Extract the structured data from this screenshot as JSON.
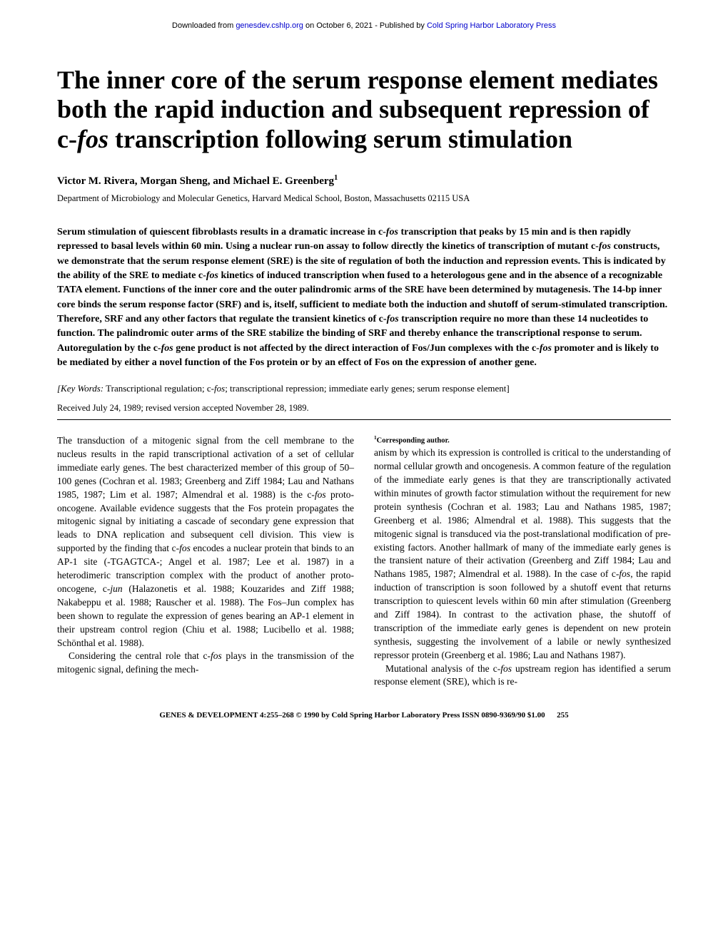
{
  "header": {
    "prefix": "Downloaded from ",
    "link1": "genesdev.cshlp.org",
    "middle": " on October 6, 2021 - Published by ",
    "link2": "Cold Spring Harbor Laboratory Press"
  },
  "title": {
    "line1": "The inner core of the serum response element mediates both the rapid induction and subsequent repression of c-",
    "italic1": "fos",
    "line2": " transcription following serum stimulation"
  },
  "authors": "Victor M. Rivera, Morgan Sheng, and Michael E. Greenberg",
  "authors_sup": "1",
  "affiliation": "Department of Microbiology and Molecular Genetics, Harvard Medical School, Boston, Massachusetts 02115 USA",
  "abstract": {
    "p1a": "Serum stimulation of quiescent fibroblasts results in a dramatic increase in c-",
    "i1": "fos",
    "p1b": " transcription that peaks by 15 min and is then rapidly repressed to basal levels within 60 min. Using a nuclear run-on assay to follow directly the kinetics of transcription of mutant c-",
    "i2": "fos",
    "p1c": " constructs, we demonstrate that the serum response element (SRE) is the site of regulation of both the induction and repression events. This is indicated by the ability of the SRE to mediate c-",
    "i3": "fos",
    "p1d": " kinetics of induced transcription when fused to a heterologous gene and in the absence of a recognizable TATA element. Functions of the inner core and the outer palindromic arms of the SRE have been determined by mutagenesis. The 14-bp inner core binds the serum response factor (SRF) and is, itself, sufficient to mediate both the induction and shutoff of serum-stimulated transcription. Therefore, SRF and any other factors that regulate the transient kinetics of c-",
    "i4": "fos",
    "p1e": " transcription require no more than these 14 nucleotides to function. The palindromic outer arms of the SRE stabilize the binding of SRF and thereby enhance the transcriptional response to serum. Autoregulation by the c-",
    "i5": "fos",
    "p1f": " gene product is not affected by the direct interaction of Fos/Jun complexes with the c-",
    "i6": "fos",
    "p1g": " promoter and is likely to be mediated by either a novel function of the Fos protein or by an effect of Fos on the expression of another gene."
  },
  "keywords": {
    "label": "[Key Words:",
    "text1": " Transcriptional regulation; c-",
    "i1": "fos",
    "text2": "; transcriptional repression; immediate early genes; serum response element]"
  },
  "received": "Received July 24, 1989; revised version accepted November 28, 1989.",
  "body": {
    "p1a": "The transduction of a mitogenic signal from the cell membrane to the nucleus results in the rapid transcriptional activation of a set of cellular immediate early genes. The best characterized member of this group of 50–100 genes (Cochran et al. 1983; Greenberg and Ziff 1984; Lau and Nathans 1985, 1987; Lim et al. 1987; Almendral et al. 1988) is the c-",
    "i1": "fos",
    "p1b": " proto-oncogene. Available evidence suggests that the Fos protein propagates the mitogenic signal by initiating a cascade of secondary gene expression that leads to DNA replication and subsequent cell division. This view is supported by the finding that c-",
    "i2": "fos",
    "p1c": " encodes a nuclear protein that binds to an AP-1 site (-TGAGTCA-; Angel et al. 1987; Lee et al. 1987) in a heterodimeric transcription complex with the product of another proto-oncogene, c-",
    "i3": "jun",
    "p1d": " (Halazonetis et al. 1988; Kouzarides and Ziff 1988; Nakabeppu et al. 1988; Rauscher et al. 1988). The Fos–Jun complex has been shown to regulate the expression of genes bearing an AP-1 element in their upstream control region (Chiu et al. 1988; Lucibello et al. 1988; Schönthal et al. 1988).",
    "p2a": "Considering the central role that c-",
    "i4": "fos",
    "p2b": " plays in the transmission of the mitogenic signal, defining the mech-",
    "p3a": "anism by which its expression is controlled is critical to the understanding of normal cellular growth and oncogenesis. A common feature of the regulation of the immediate early genes is that they are transcriptionally activated within minutes of growth factor stimulation without the requirement for new protein synthesis (Cochran et al. 1983; Lau and Nathans 1985, 1987; Greenberg et al. 1986; Almendral et al. 1988). This suggests that the mitogenic signal is transduced via the post-translational modification of pre-existing factors. Another hallmark of many of the immediate early genes is the transient nature of their activation (Greenberg and Ziff 1984; Lau and Nathans 1985, 1987; Almendral et al. 1988). In the case of c-",
    "i5": "fos",
    "p3b": ", the rapid induction of transcription is soon followed by a shutoff event that returns transcription to quiescent levels within 60 min after stimulation (Greenberg and Ziff 1984). In contrast to the activation phase, the shutoff of transcription of the immediate early genes is dependent on new protein synthesis, suggesting the involvement of a labile or newly synthesized repressor protein (Greenberg et al. 1986; Lau and Nathans 1987).",
    "p4a": "Mutational analysis of the c-",
    "i6": "fos",
    "p4b": " upstream region has identified a serum response element (SRE), which is re-"
  },
  "footnote_sup": "1",
  "footnote": "Corresponding author.",
  "footer": {
    "citation": "GENES & DEVELOPMENT 4:255–268 © 1990 by Cold Spring Harbor Laboratory Press ISSN 0890-9369/90 $1.00",
    "page": "255"
  }
}
